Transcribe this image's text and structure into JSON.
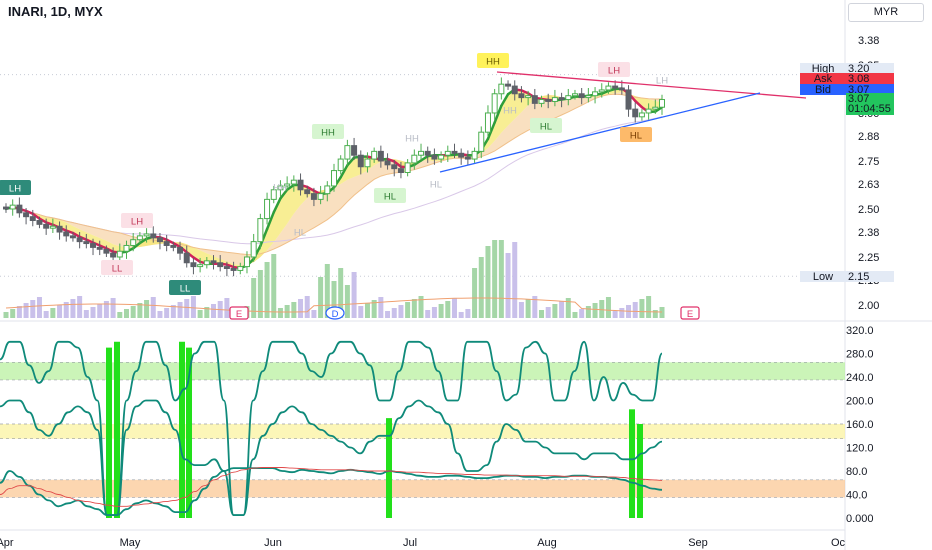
{
  "header": {
    "symbol": "INARI, 1D, MYX",
    "currency": "MYR"
  },
  "chart_data": [
    {
      "type": "candlestick",
      "title": "INARI, 1D, MYX",
      "x_ticks": [
        "Apr",
        "May",
        "Jun",
        "Jul",
        "Aug",
        "Sep",
        "Oc"
      ],
      "y_ticks": [
        3.38,
        3.25,
        3.0,
        2.88,
        2.75,
        2.63,
        2.5,
        2.38,
        2.25,
        2.13,
        2.0
      ],
      "y_tick_labels": [
        "3.38",
        "3.25",
        "3.00",
        "2.88",
        "2.75",
        "2.63",
        "2.50",
        "2.38",
        "2.25",
        "2.13",
        "2.00"
      ],
      "ylim": [
        1.98,
        3.42
      ],
      "price_labels": [
        {
          "label": "High",
          "value": "3.20",
          "color": "#e3eaf5",
          "text": "#131722"
        },
        {
          "label": "Ask",
          "value": "3.08",
          "color": "#f23645",
          "text": "#ffffff"
        },
        {
          "label": "Bid",
          "value": "3.07",
          "color": "#2962ff",
          "text": "#ffffff"
        },
        {
          "label": "",
          "value": "3.07",
          "sub": "01:04:55",
          "color": "#22c55e",
          "text": "#ffffff"
        },
        {
          "label": "Low",
          "value": "2.15",
          "color": "#e3eaf5",
          "text": "#131722"
        }
      ],
      "close_series": [
        2.5,
        2.52,
        2.48,
        2.46,
        2.44,
        2.42,
        2.4,
        2.41,
        2.38,
        2.36,
        2.35,
        2.33,
        2.32,
        2.3,
        2.29,
        2.27,
        2.25,
        2.28,
        2.31,
        2.34,
        2.36,
        2.37,
        2.35,
        2.33,
        2.31,
        2.3,
        2.27,
        2.22,
        2.2,
        2.21,
        2.23,
        2.22,
        2.2,
        2.19,
        2.18,
        2.2,
        2.25,
        2.33,
        2.45,
        2.55,
        2.6,
        2.62,
        2.63,
        2.65,
        2.6,
        2.58,
        2.55,
        2.58,
        2.62,
        2.7,
        2.76,
        2.83,
        2.78,
        2.72,
        2.76,
        2.8,
        2.75,
        2.73,
        2.71,
        2.69,
        2.74,
        2.78,
        2.8,
        2.78,
        2.76,
        2.78,
        2.8,
        2.79,
        2.77,
        2.76,
        2.8,
        2.9,
        3.0,
        3.1,
        3.15,
        3.14,
        3.1,
        3.08,
        3.09,
        3.05,
        3.07,
        3.06,
        3.08,
        3.07,
        3.09,
        3.1,
        3.08,
        3.09,
        3.11,
        3.12,
        3.14,
        3.13,
        3.12,
        3.02,
        2.98,
        3.0,
        3.02,
        3.03,
        3.07
      ],
      "pattern_labels": [
        {
          "text": "LH",
          "style": "teal"
        },
        {
          "text": "LH",
          "style": "pink"
        },
        {
          "text": "LL",
          "style": "pink"
        },
        {
          "text": "LL",
          "style": "teal"
        },
        {
          "text": "HH",
          "style": "green"
        },
        {
          "text": "HH",
          "style": "yellow"
        },
        {
          "text": "HL",
          "style": "green"
        },
        {
          "text": "HL",
          "style": "green"
        },
        {
          "text": "LH",
          "style": "pink"
        },
        {
          "text": "HL",
          "style": "orange"
        },
        {
          "text": "HH",
          "style": "faint"
        },
        {
          "text": "HH",
          "style": "faint"
        },
        {
          "text": "HL",
          "style": "faint"
        },
        {
          "text": "HL",
          "style": "faint"
        },
        {
          "text": "HH",
          "style": "faint"
        },
        {
          "text": "LH",
          "style": "faint"
        }
      ],
      "event_markers": [
        "E",
        "D",
        "E"
      ]
    },
    {
      "type": "line",
      "title": "",
      "y_ticks": [
        320,
        280,
        240,
        200,
        160,
        120,
        80,
        40,
        0
      ],
      "y_tick_labels": [
        "320.0",
        "280.0",
        "240.0",
        "200.0",
        "160.0",
        "120.0",
        "80.0",
        "40.0",
        "0.000"
      ],
      "ylim": [
        -5,
        330
      ],
      "zones": [
        {
          "from": 235,
          "to": 265,
          "color": "#b9f0a0"
        },
        {
          "from": 135,
          "to": 160,
          "color": "#fbf3a0"
        },
        {
          "from": 35,
          "to": 65,
          "color": "#fbc896"
        }
      ],
      "series": [
        {
          "color": "#0f8a7a",
          "values": [
            270,
            300,
            300,
            260,
            230,
            250,
            300,
            300,
            290,
            240,
            200,
            5,
            5,
            200,
            250,
            300,
            300,
            260,
            200,
            220,
            280,
            300,
            300,
            200,
            5,
            5,
            200,
            250,
            300,
            300,
            300,
            280,
            250,
            240,
            280,
            300,
            300,
            280,
            260,
            200,
            200,
            250,
            300,
            300,
            290,
            250,
            200,
            200,
            300,
            300,
            300,
            250,
            200,
            210,
            290,
            300,
            280,
            200,
            200,
            250,
            300,
            200,
            240,
            200,
            230,
            210,
            200,
            200,
            280
          ]
        },
        {
          "color": "#0f8a7a",
          "values": [
            190,
            200,
            200,
            180,
            150,
            140,
            160,
            180,
            190,
            180,
            150,
            5,
            5,
            150,
            190,
            200,
            200,
            180,
            150,
            100,
            90,
            90,
            100,
            80,
            5,
            5,
            100,
            140,
            160,
            180,
            190,
            180,
            160,
            150,
            140,
            130,
            120,
            110,
            130,
            140,
            140,
            170,
            190,
            200,
            190,
            180,
            160,
            110,
            80,
            80,
            90,
            130,
            160,
            150,
            130,
            130,
            120,
            110,
            110,
            110,
            100,
            110,
            110,
            110,
            100,
            100,
            110,
            120,
            130
          ]
        },
        {
          "color": "#0f8a7a",
          "values": [
            60,
            80,
            70,
            55,
            40,
            30,
            20,
            25,
            30,
            20,
            15,
            5,
            5,
            15,
            25,
            30,
            25,
            20,
            10,
            10,
            30,
            50,
            70,
            80,
            85,
            85,
            85,
            85,
            85,
            80,
            78,
            82,
            80,
            78,
            76,
            80,
            82,
            80,
            78,
            75,
            80,
            78,
            75,
            72,
            70,
            70,
            72,
            72,
            70,
            68,
            68,
            70,
            72,
            72,
            70,
            70,
            68,
            70,
            70,
            72,
            72,
            70,
            70,
            68,
            65,
            60,
            55,
            50,
            48
          ]
        },
        {
          "color": "#e04848",
          "values": [
            40,
            50,
            55,
            55,
            50,
            45,
            40,
            35,
            30,
            28,
            25,
            22,
            20,
            20,
            22,
            24,
            26,
            28,
            30,
            35,
            45,
            55,
            65,
            72,
            78,
            82,
            85,
            86,
            86,
            86,
            85,
            84,
            83,
            82,
            82,
            82,
            82,
            81,
            80,
            80,
            80,
            79,
            78,
            78,
            77,
            76,
            76,
            75,
            74,
            74,
            73,
            73,
            73,
            72,
            72,
            72,
            72,
            72,
            71,
            71,
            71,
            71,
            70,
            70,
            69,
            67,
            66,
            65,
            64
          ]
        }
      ],
      "signal_bars": [
        {
          "heights": [
            290,
            300
          ]
        },
        {
          "heights": [
            300,
            290
          ]
        },
        {
          "heights": [
            170
          ]
        },
        {
          "heights": [
            185,
            160
          ]
        }
      ]
    }
  ]
}
